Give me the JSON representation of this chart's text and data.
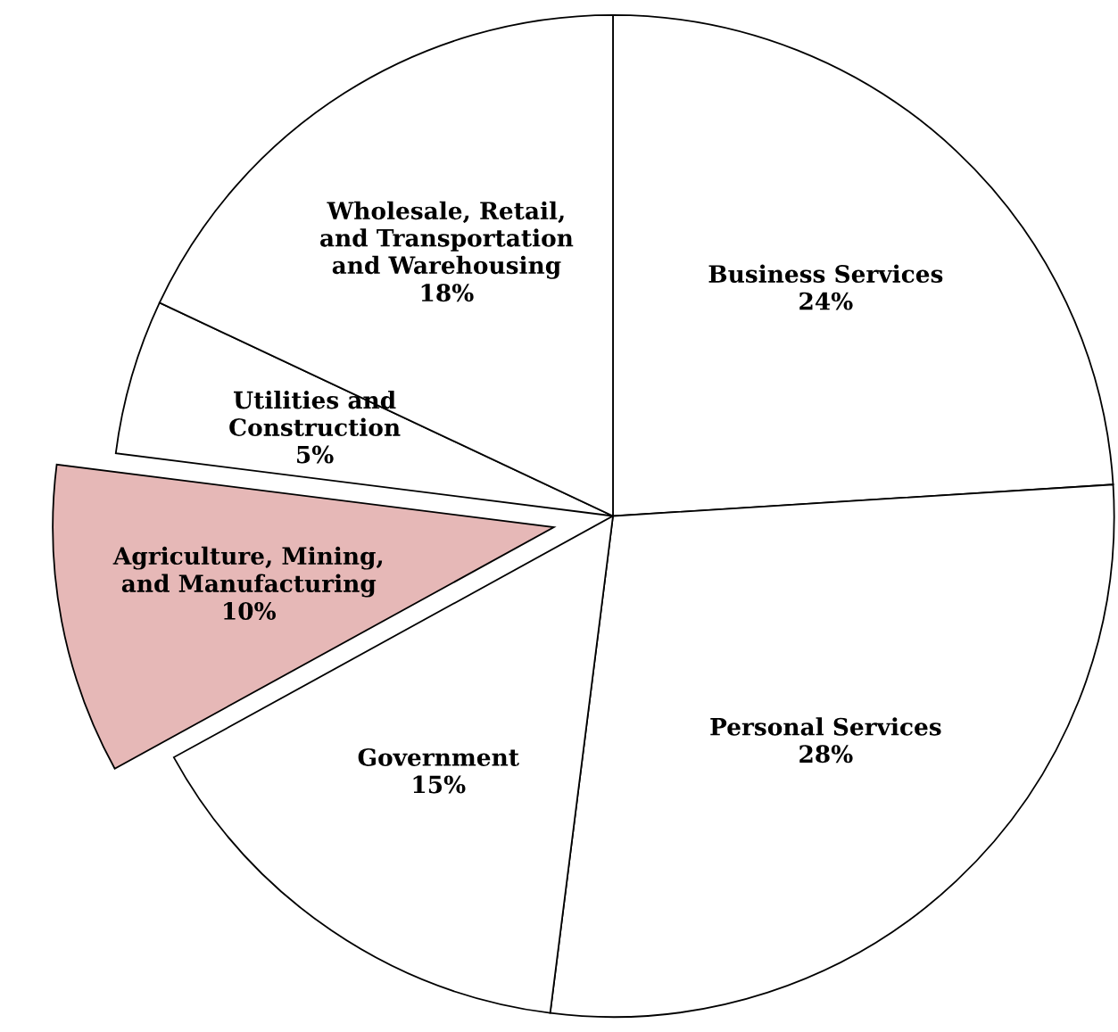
{
  "chart_data": {
    "type": "pie",
    "categories": [
      "Business Services",
      "Personal Services",
      "Government",
      "Agriculture, Mining,\nand Manufacturing",
      "Utilities and\nConstruction",
      "Wholesale, Retail,\nand Transportation\nand Warehousing"
    ],
    "values": [
      24,
      28,
      15,
      10,
      5,
      18
    ],
    "value_labels": [
      "24%",
      "28%",
      "15%",
      "10%",
      "5%",
      "18%"
    ],
    "colors": [
      "#ffffff",
      "#ffffff",
      "#ffffff",
      "#e6b8b7",
      "#ffffff",
      "#ffffff"
    ],
    "legend": false
  }
}
